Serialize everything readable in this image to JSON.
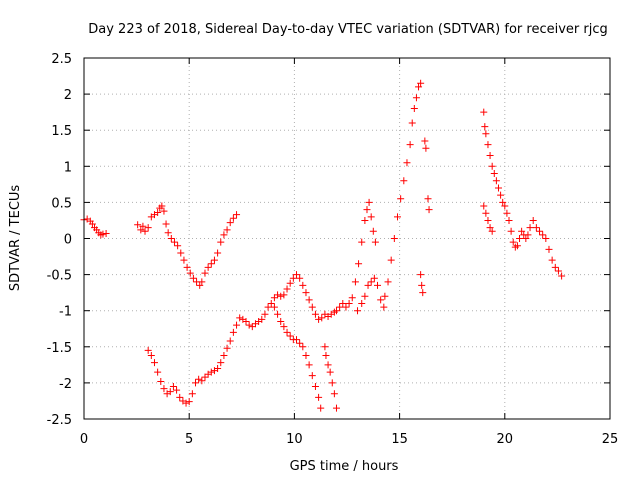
{
  "chart_data": {
    "type": "scatter",
    "title": "Day 223 of 2018, Sidereal Day-to-day VTEC variation (SDTVAR) for receiver rjcg",
    "xlabel": "GPS time / hours",
    "ylabel": "SDTVAR / TECUs",
    "xlim": [
      0,
      25
    ],
    "ylim": [
      -2.5,
      2.5
    ],
    "x_ticks": [
      "0",
      "5",
      "10",
      "15",
      "20",
      "25"
    ],
    "y_ticks": [
      "2.5",
      "2",
      "1.5",
      "1",
      "0.5",
      "0",
      "-0.5",
      "-1",
      "-1.5",
      "-2",
      "-2.5"
    ],
    "grid": true,
    "marker": "plus",
    "series_color": "#ff0000",
    "series": [
      {
        "points": [
          [
            0.0,
            0.26
          ],
          [
            0.15,
            0.27
          ],
          [
            0.3,
            0.24
          ],
          [
            0.4,
            0.2
          ],
          [
            0.5,
            0.15
          ],
          [
            0.6,
            0.12
          ],
          [
            0.7,
            0.08
          ],
          [
            0.8,
            0.05
          ],
          [
            0.9,
            0.06
          ],
          [
            1.05,
            0.07
          ],
          [
            2.55,
            0.19
          ],
          [
            2.7,
            0.12
          ],
          [
            2.8,
            0.17
          ],
          [
            2.9,
            0.1
          ],
          [
            3.05,
            0.15
          ],
          [
            3.2,
            0.3
          ],
          [
            3.35,
            0.33
          ],
          [
            3.5,
            0.36
          ],
          [
            3.6,
            0.42
          ],
          [
            3.7,
            0.45
          ],
          [
            3.8,
            0.38
          ],
          [
            3.9,
            0.2
          ],
          [
            4.0,
            0.08
          ],
          [
            4.15,
            0.0
          ],
          [
            4.3,
            -0.05
          ],
          [
            4.45,
            -0.1
          ],
          [
            4.6,
            -0.2
          ],
          [
            4.75,
            -0.3
          ],
          [
            4.9,
            -0.4
          ],
          [
            5.05,
            -0.48
          ],
          [
            5.2,
            -0.55
          ],
          [
            5.35,
            -0.6
          ],
          [
            5.5,
            -0.65
          ],
          [
            5.6,
            -0.6
          ],
          [
            5.75,
            -0.48
          ],
          [
            5.9,
            -0.4
          ],
          [
            6.05,
            -0.35
          ],
          [
            6.2,
            -0.3
          ],
          [
            6.35,
            -0.2
          ],
          [
            6.5,
            -0.05
          ],
          [
            6.65,
            0.05
          ],
          [
            6.8,
            0.12
          ],
          [
            6.95,
            0.22
          ],
          [
            7.1,
            0.28
          ],
          [
            7.25,
            0.33
          ],
          [
            3.05,
            -1.55
          ],
          [
            3.2,
            -1.62
          ],
          [
            3.35,
            -1.72
          ],
          [
            3.5,
            -1.85
          ],
          [
            3.65,
            -1.98
          ],
          [
            3.8,
            -2.08
          ],
          [
            3.95,
            -2.15
          ],
          [
            4.1,
            -2.12
          ],
          [
            4.25,
            -2.05
          ],
          [
            4.4,
            -2.1
          ],
          [
            4.55,
            -2.2
          ],
          [
            4.7,
            -2.25
          ],
          [
            4.85,
            -2.28
          ],
          [
            5.0,
            -2.26
          ],
          [
            5.15,
            -2.15
          ],
          [
            5.3,
            -2.0
          ],
          [
            5.45,
            -1.95
          ],
          [
            5.6,
            -1.97
          ],
          [
            5.75,
            -1.92
          ],
          [
            5.9,
            -1.88
          ],
          [
            6.05,
            -1.85
          ],
          [
            6.2,
            -1.83
          ],
          [
            6.35,
            -1.8
          ],
          [
            6.5,
            -1.72
          ],
          [
            6.65,
            -1.62
          ],
          [
            6.8,
            -1.52
          ],
          [
            6.95,
            -1.42
          ],
          [
            7.1,
            -1.3
          ],
          [
            7.25,
            -1.2
          ],
          [
            7.4,
            -1.1
          ],
          [
            7.55,
            -1.12
          ],
          [
            7.7,
            -1.15
          ],
          [
            7.85,
            -1.2
          ],
          [
            8.0,
            -1.22
          ],
          [
            8.15,
            -1.18
          ],
          [
            8.3,
            -1.15
          ],
          [
            8.45,
            -1.12
          ],
          [
            8.6,
            -1.05
          ],
          [
            8.75,
            -0.95
          ],
          [
            8.9,
            -0.9
          ],
          [
            9.05,
            -0.82
          ],
          [
            9.2,
            -0.78
          ],
          [
            9.35,
            -0.8
          ],
          [
            9.5,
            -0.78
          ],
          [
            9.65,
            -0.7
          ],
          [
            9.8,
            -0.62
          ],
          [
            9.95,
            -0.55
          ],
          [
            10.1,
            -0.5
          ],
          [
            10.25,
            -0.55
          ],
          [
            10.4,
            -0.65
          ],
          [
            10.55,
            -0.75
          ],
          [
            10.7,
            -0.85
          ],
          [
            10.85,
            -0.95
          ],
          [
            11.0,
            -1.05
          ],
          [
            11.15,
            -1.12
          ],
          [
            11.3,
            -1.1
          ],
          [
            11.45,
            -1.05
          ],
          [
            11.6,
            -1.08
          ],
          [
            11.75,
            -1.05
          ],
          [
            11.9,
            -1.02
          ],
          [
            9.05,
            -0.95
          ],
          [
            9.2,
            -1.05
          ],
          [
            9.35,
            -1.15
          ],
          [
            9.5,
            -1.22
          ],
          [
            9.65,
            -1.3
          ],
          [
            9.8,
            -1.35
          ],
          [
            9.95,
            -1.4
          ],
          [
            10.1,
            -1.4
          ],
          [
            10.25,
            -1.45
          ],
          [
            10.4,
            -1.5
          ],
          [
            10.55,
            -1.62
          ],
          [
            10.7,
            -1.75
          ],
          [
            10.85,
            -1.9
          ],
          [
            11.0,
            -2.05
          ],
          [
            11.15,
            -2.2
          ],
          [
            11.25,
            -2.35
          ],
          [
            12.0,
            -1.0
          ],
          [
            12.15,
            -0.95
          ],
          [
            12.3,
            -0.9
          ],
          [
            12.45,
            -0.95
          ],
          [
            12.6,
            -0.9
          ],
          [
            12.75,
            -0.82
          ],
          [
            12.9,
            -0.6
          ],
          [
            13.05,
            -0.35
          ],
          [
            13.2,
            -0.05
          ],
          [
            13.35,
            0.25
          ],
          [
            13.45,
            0.4
          ],
          [
            13.55,
            0.5
          ],
          [
            13.65,
            0.3
          ],
          [
            13.75,
            0.1
          ],
          [
            13.85,
            -0.05
          ],
          [
            12.0,
            -2.35
          ],
          [
            11.9,
            -2.15
          ],
          [
            11.8,
            -2.0
          ],
          [
            11.7,
            -1.85
          ],
          [
            11.6,
            -1.75
          ],
          [
            11.5,
            -1.62
          ],
          [
            11.45,
            -1.5
          ],
          [
            13.0,
            -1.0
          ],
          [
            13.2,
            -0.9
          ],
          [
            13.35,
            -0.8
          ],
          [
            13.5,
            -0.65
          ],
          [
            13.65,
            -0.6
          ],
          [
            13.8,
            -0.55
          ],
          [
            13.95,
            -0.65
          ],
          [
            14.1,
            -0.85
          ],
          [
            14.25,
            -0.95
          ],
          [
            14.3,
            -0.8
          ],
          [
            14.45,
            -0.6
          ],
          [
            14.6,
            -0.3
          ],
          [
            14.75,
            0.0
          ],
          [
            14.9,
            0.3
          ],
          [
            15.05,
            0.55
          ],
          [
            15.2,
            0.8
          ],
          [
            15.35,
            1.05
          ],
          [
            15.5,
            1.3
          ],
          [
            15.6,
            1.6
          ],
          [
            15.7,
            1.8
          ],
          [
            15.8,
            1.95
          ],
          [
            15.9,
            2.1
          ],
          [
            16.0,
            2.15
          ],
          [
            16.0,
            -0.5
          ],
          [
            16.05,
            -0.65
          ],
          [
            16.1,
            -0.75
          ],
          [
            16.2,
            1.35
          ],
          [
            16.25,
            1.25
          ],
          [
            16.35,
            0.55
          ],
          [
            16.4,
            0.4
          ],
          [
            19.0,
            1.75
          ],
          [
            19.05,
            1.55
          ],
          [
            19.1,
            1.45
          ],
          [
            19.2,
            1.3
          ],
          [
            19.3,
            1.15
          ],
          [
            19.4,
            1.0
          ],
          [
            19.5,
            0.9
          ],
          [
            19.6,
            0.8
          ],
          [
            19.7,
            0.7
          ],
          [
            19.8,
            0.6
          ],
          [
            19.9,
            0.5
          ],
          [
            19.0,
            0.45
          ],
          [
            19.1,
            0.35
          ],
          [
            19.2,
            0.25
          ],
          [
            19.3,
            0.15
          ],
          [
            19.4,
            0.1
          ],
          [
            20.0,
            0.45
          ],
          [
            20.1,
            0.35
          ],
          [
            20.2,
            0.25
          ],
          [
            20.3,
            0.1
          ],
          [
            20.4,
            -0.05
          ],
          [
            20.5,
            -0.12
          ],
          [
            20.6,
            -0.1
          ],
          [
            20.7,
            0.0
          ],
          [
            20.8,
            0.1
          ],
          [
            20.9,
            0.05
          ],
          [
            21.0,
            0.0
          ],
          [
            21.1,
            0.05
          ],
          [
            21.2,
            0.15
          ],
          [
            21.35,
            0.25
          ],
          [
            21.5,
            0.15
          ],
          [
            21.65,
            0.1
          ],
          [
            21.8,
            0.05
          ],
          [
            21.95,
            0.0
          ],
          [
            22.1,
            -0.15
          ],
          [
            22.25,
            -0.3
          ],
          [
            22.4,
            -0.4
          ],
          [
            22.55,
            -0.45
          ],
          [
            22.7,
            -0.52
          ]
        ]
      }
    ]
  }
}
